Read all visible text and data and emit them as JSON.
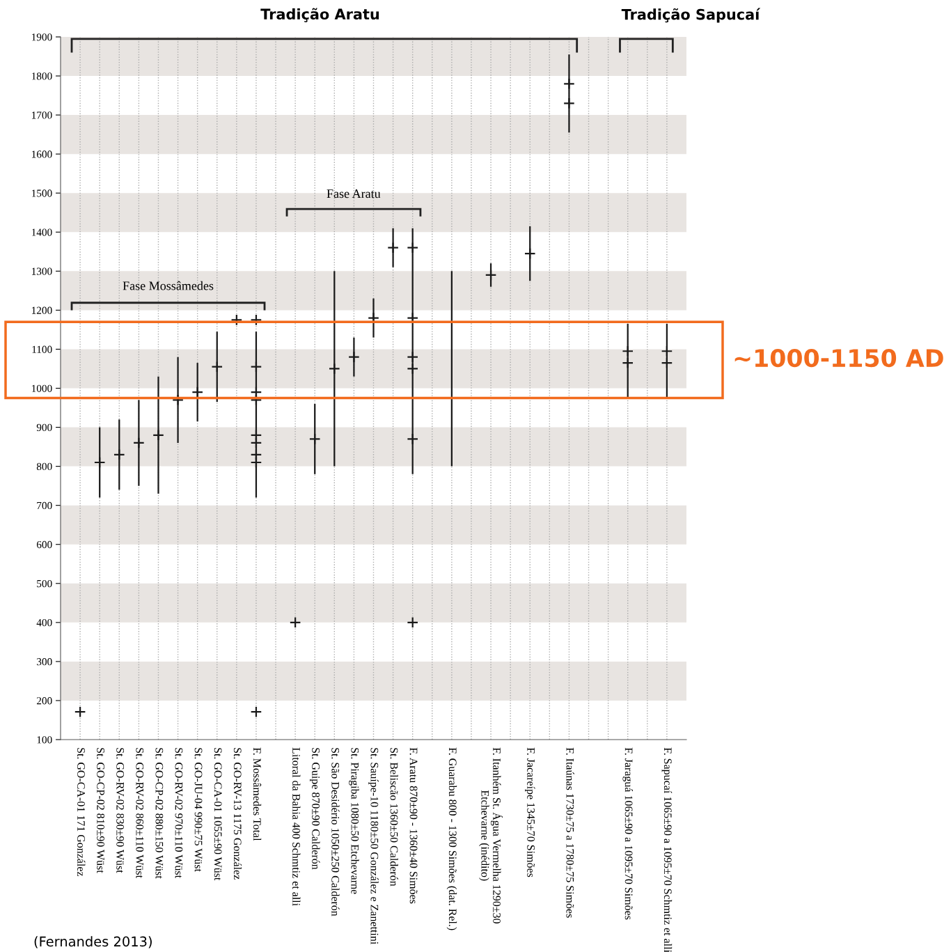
{
  "chart_data": {
    "type": "bar",
    "categories": [
      "St. GO-CA-01 171 González",
      "St. GO-CP-02 810±90 Wüst",
      "St. GO-RV-02 830±90 Wüst",
      "St. GO-RV-02 860±110 Wüst",
      "St. GO-CP-02 880±150 Wüst",
      "St. GO-RV-02 970±110 Wüst",
      "St. GO-JU-04 990±75 Wüst",
      "St. GO-CA-01 1055±90 Wüst",
      "St. GO-RV-13 1175 González",
      "F. Mossâmedes Total",
      null,
      "Litoral da Bahia 400 Schmtiz et alli",
      "St. Guipe 870±90 Calderón",
      "St. São Desidério 1050±250 Calderón",
      "St. Piragiba 1080±50 Etchevarne",
      "St. Sauípe-10 1180±50 González e Zanettini",
      "St. Beliscão 1360±50 Calderón",
      "F. Aratu 870±90 - 1360±40 Simões",
      null,
      "F. Guarabu 800 - 1300 Simões (dat. Rel.)",
      null,
      "F. Itanhém St. Água Vermelha 1290±30\nEtchevarne (inédito)",
      null,
      "F. Jacareípe 1345±70 Simões",
      null,
      "F. Itaúnas 1730±75 a 1780±75 Simões",
      null,
      null,
      "F. Jaraguá 1065±90 a 1095±70 Simões",
      null,
      "F. Sapucaí 1065±90 a 1095±70 Schmtiz et alli"
    ],
    "series": [
      {
        "color": "#1a1a1a",
        "base": [
          null,
          720,
          740,
          750,
          730,
          860,
          915,
          965,
          null,
          720,
          null,
          null,
          780,
          800,
          1030,
          1130,
          1310,
          780,
          null,
          800,
          null,
          1260,
          null,
          1275,
          null,
          1655,
          null,
          null,
          975,
          null,
          975
        ],
        "values": [
          null,
          180,
          180,
          220,
          300,
          220,
          150,
          180,
          null,
          425,
          null,
          null,
          180,
          500,
          100,
          100,
          100,
          630,
          null,
          500,
          null,
          60,
          null,
          140,
          null,
          200,
          null,
          null,
          190,
          null,
          190
        ]
      },
      {
        "type": "scatter",
        "color": "#1a1a1a",
        "marker": "cross",
        "x": [
          "St. GO-CA-01 171 González",
          "St. GO-CP-02 810±90 Wüst",
          "St. GO-RV-02 830±90 Wüst",
          "St. GO-RV-02 860±110 Wüst",
          "St. GO-CP-02 880±150 Wüst",
          "St. GO-RV-02 970±110 Wüst",
          "St. GO-JU-04 990±75 Wüst",
          "St. GO-CA-01 1055±90 Wüst",
          "St. GO-RV-13 1175 González",
          "F. Mossâmedes Total",
          "F. Mossâmedes Total",
          "F. Mossâmedes Total",
          "F. Mossâmedes Total",
          "F. Mossâmedes Total",
          "F. Mossâmedes Total",
          "F. Mossâmedes Total",
          "F. Mossâmedes Total",
          "F. Mossâmedes Total",
          "Litoral da Bahia 400 Schmtiz et alli",
          "St. Guipe 870±90 Calderón",
          "St. São Desidério 1050±250 Calderón",
          "St. Piragiba 1080±50 Etchevarne",
          "St. Sauípe-10 1180±50 González e Zanettini",
          "St. Beliscão 1360±50 Calderón",
          "F. Aratu 870±90 - 1360±40 Simões",
          "F. Aratu 870±90 - 1360±40 Simões",
          "F. Aratu 870±90 - 1360±40 Simões",
          "F. Aratu 870±90 - 1360±40 Simões",
          "F. Aratu 870±90 - 1360±40 Simões",
          "F. Aratu 870±90 - 1360±40 Simões",
          "F. Itanhém St. Água Vermelha 1290±30\nEtchevarne (inédito)",
          "F. Jacareípe 1345±70 Simões",
          "F. Itaúnas 1730±75 a 1780±75 Simões",
          "F. Itaúnas 1730±75 a 1780±75 Simões",
          "F. Jaraguá 1065±90 a 1095±70 Simões",
          "F. Jaraguá 1065±90 a 1095±70 Simões",
          "F. Sapucaí 1065±90 a 1095±70 Schmtiz et alli",
          "F. Sapucaí 1065±90 a 1095±70 Schmtiz et alli"
        ],
        "values": [
          171,
          810,
          830,
          860,
          880,
          970,
          990,
          1055,
          1175,
          171,
          810,
          830,
          860,
          880,
          970,
          990,
          1055,
          1175,
          400,
          870,
          1050,
          1080,
          1180,
          1360,
          400,
          870,
          1050,
          1080,
          1180,
          1360,
          1290,
          1345,
          1730,
          1780,
          1065,
          1095,
          1065,
          1095
        ]
      }
    ],
    "ylim": [
      100,
      1900
    ],
    "yticks": [
      100,
      200,
      300,
      400,
      500,
      600,
      700,
      800,
      900,
      1000,
      1100,
      1200,
      1300,
      1400,
      1500,
      1600,
      1700,
      1800,
      1900
    ],
    "grid": "x",
    "bands": [
      {
        "axis": "y",
        "from": 200,
        "to": 300,
        "color": "#e8e4e1"
      },
      {
        "axis": "y",
        "from": 400,
        "to": 500,
        "color": "#e8e4e1"
      },
      {
        "axis": "y",
        "from": 600,
        "to": 700,
        "color": "#e8e4e1"
      },
      {
        "axis": "y",
        "from": 800,
        "to": 900,
        "color": "#e8e4e1"
      },
      {
        "axis": "y",
        "from": 1000,
        "to": 1100,
        "color": "#e8e4e1"
      },
      {
        "axis": "y",
        "from": 1200,
        "to": 1300,
        "color": "#e8e4e1"
      },
      {
        "axis": "y",
        "from": 1400,
        "to": 1500,
        "color": "#e8e4e1"
      },
      {
        "axis": "y",
        "from": 1600,
        "to": 1700,
        "color": "#e8e4e1"
      },
      {
        "axis": "y",
        "from": 1800,
        "to": 1900,
        "color": "#e8e4e1"
      }
    ],
    "annotations": [
      "Tradição Aratu",
      "Tradição Sapucaí",
      "Fase Mossâmedes",
      "Fase Aratu",
      "~1000-1150 AD",
      "(Fernandes 2013)"
    ]
  }
}
